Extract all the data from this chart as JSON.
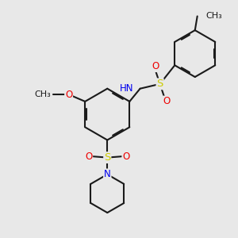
{
  "bg_color": "#e8e8e8",
  "bond_color": "#1a1a1a",
  "lw": 1.5,
  "dbo": 0.055,
  "fs": 8.5,
  "colors": {
    "C": "#1a1a1a",
    "N": "#0000ee",
    "O": "#ee0000",
    "S": "#cccc00",
    "H": "#708090"
  },
  "xlim": [
    0,
    10
  ],
  "ylim": [
    0,
    10
  ]
}
